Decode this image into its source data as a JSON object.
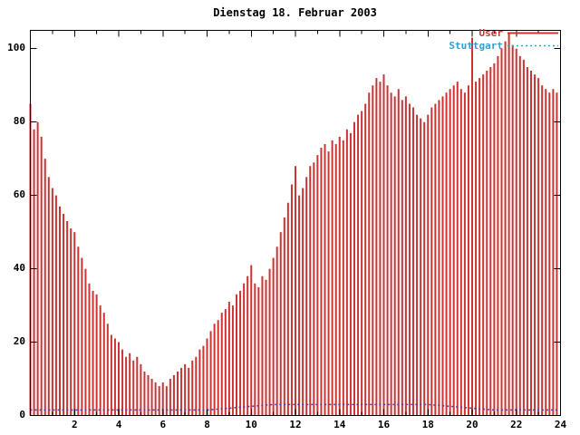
{
  "window": {
    "background": "#ffffff",
    "border_color": "#000000"
  },
  "chart_data": {
    "type": "bar",
    "title": "Dienstag 18. Februar 2003",
    "xlabel": "",
    "ylabel": "",
    "x_unit": "hour of day",
    "xlim": [
      0,
      24
    ],
    "ylim": [
      0,
      105
    ],
    "xticks": [
      2,
      4,
      6,
      8,
      10,
      12,
      14,
      16,
      18,
      20,
      22,
      24
    ],
    "minor_xticks": [
      1,
      3,
      5,
      7,
      9,
      11,
      13,
      15,
      17,
      19,
      21,
      23
    ],
    "yticks": [
      0,
      20,
      40,
      60,
      80,
      100
    ],
    "grid": false,
    "legend_position": "top-right",
    "series": [
      {
        "name": "User",
        "style": "impulses",
        "color": "#cc3333",
        "interval_minutes": 10,
        "step_hours": 0.1666667,
        "values": [
          85,
          78,
          80,
          76,
          70,
          65,
          62,
          60,
          57,
          55,
          53,
          51,
          50,
          46,
          43,
          40,
          36,
          34,
          33,
          30,
          28,
          25,
          22,
          21,
          20,
          18,
          16,
          17,
          15,
          16,
          14,
          12,
          11,
          10,
          9,
          8,
          9,
          8,
          10,
          11,
          12,
          13,
          14,
          13,
          15,
          16,
          18,
          19,
          21,
          23,
          25,
          26,
          28,
          29,
          31,
          30,
          33,
          34,
          36,
          38,
          41,
          36,
          35,
          38,
          37,
          40,
          43,
          46,
          50,
          54,
          58,
          63,
          68,
          60,
          62,
          65,
          68,
          69,
          71,
          73,
          74,
          72,
          75,
          74,
          76,
          75,
          78,
          77,
          80,
          82,
          83,
          85,
          88,
          90,
          92,
          91,
          93,
          90,
          88,
          87,
          89,
          86,
          87,
          85,
          84,
          82,
          81,
          80,
          82,
          84,
          85,
          86,
          87,
          88,
          89,
          90,
          91,
          89,
          88,
          90,
          103,
          91,
          92,
          93,
          94,
          95,
          96,
          98,
          100,
          102,
          104,
          101,
          100,
          98,
          97,
          95,
          94,
          93,
          92,
          90,
          89,
          88,
          89,
          88
        ]
      },
      {
        "name": "Stuttgart",
        "style": "dotted-line",
        "color": "#4444aa",
        "label_color": "#33a0cc",
        "interval_minutes": 60,
        "step_hours": 1,
        "values": [
          1.5,
          1.5,
          1.5,
          1.5,
          1.5,
          1.5,
          1.5,
          1.5,
          1.5,
          2,
          2.5,
          3,
          3,
          3,
          3,
          3,
          3,
          3,
          3,
          2.5,
          2,
          1.5,
          1.5,
          1.5,
          1.5
        ]
      }
    ]
  }
}
